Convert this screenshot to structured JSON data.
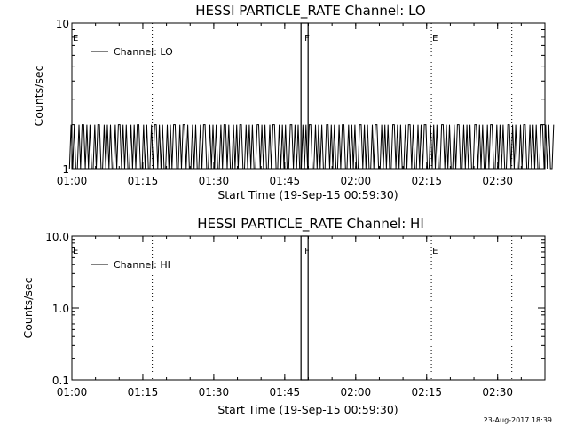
{
  "footer": {
    "timestamp": "23-Aug-2017 18:39"
  },
  "chart_data": [
    {
      "type": "line",
      "title": "HESSI PARTICLE_RATE Channel: LO",
      "xlabel": "Start Time (19-Sep-15 00:59:30)",
      "ylabel": "Counts/sec",
      "y_scale": "log",
      "ylim": [
        1,
        10
      ],
      "y_ticks": [
        1,
        10
      ],
      "y_tick_labels": [
        "1",
        "10"
      ],
      "xlim": [
        "01:00",
        "02:40"
      ],
      "x_ticks": [
        "01:00",
        "01:15",
        "01:30",
        "01:45",
        "02:00",
        "02:15",
        "02:30"
      ],
      "grid": false,
      "legend_position": "top-left",
      "series": [
        {
          "name": "Channel: LO",
          "time_step_seconds": 20,
          "start_time": "00:59:30",
          "values": [
            1,
            2,
            1,
            2,
            1,
            1,
            2,
            1,
            2,
            2,
            1,
            2,
            1,
            2,
            1,
            1,
            2,
            1,
            2,
            2,
            1,
            1,
            2,
            1,
            2,
            1,
            2,
            1,
            1,
            2,
            1,
            2,
            2,
            1,
            2,
            1,
            2,
            1,
            1,
            2,
            1,
            2,
            1,
            2,
            2,
            1,
            1,
            2,
            1,
            2,
            1,
            1,
            2,
            1,
            2,
            2,
            1,
            2,
            1,
            2,
            1,
            1,
            2,
            1,
            2,
            1,
            2,
            2,
            1,
            1,
            2,
            1,
            2,
            2,
            1,
            2,
            1,
            1,
            2,
            1,
            2,
            1,
            1,
            2,
            1,
            2,
            2,
            1,
            1,
            2,
            1,
            2,
            1,
            2,
            1,
            1,
            2,
            1,
            2,
            2,
            1,
            2,
            1,
            1,
            2,
            1,
            2,
            1,
            2,
            2,
            1,
            1,
            2,
            1,
            2,
            1,
            2,
            1,
            1,
            2,
            2,
            1,
            2,
            1,
            2,
            1,
            1,
            2,
            1,
            2,
            2,
            1,
            1,
            2,
            1,
            2,
            1,
            2,
            1,
            1,
            2,
            2,
            1,
            2,
            1,
            2,
            1,
            1,
            2,
            1,
            2,
            1,
            2,
            2,
            1,
            1,
            2,
            1,
            2,
            1,
            2,
            1,
            1,
            2,
            2,
            1,
            2,
            1,
            2,
            1,
            1,
            2,
            1,
            2,
            2,
            1,
            1,
            2,
            1,
            2,
            1,
            2,
            1,
            1,
            2,
            2,
            1,
            2,
            1,
            2,
            1,
            1,
            2,
            1,
            2,
            2,
            1,
            1,
            2,
            1,
            2,
            1,
            2,
            1,
            1,
            2,
            2,
            1,
            2,
            1,
            2,
            1,
            1,
            2,
            1,
            2,
            2,
            1,
            2,
            1,
            1,
            2,
            1,
            2,
            1,
            2,
            2,
            1,
            1,
            2,
            1,
            2,
            1,
            2,
            1,
            1,
            2,
            2,
            1,
            2,
            1,
            2,
            1,
            1,
            2,
            1,
            2,
            2,
            1,
            1,
            2,
            1,
            2,
            1,
            2,
            1,
            1,
            2,
            2,
            1,
            2,
            1,
            2,
            1,
            1,
            2,
            1,
            2,
            2,
            1,
            1,
            2,
            1,
            2,
            1,
            2,
            1,
            1,
            2,
            2,
            1,
            2,
            1,
            2,
            1,
            1,
            2,
            1,
            2,
            2,
            1,
            1,
            2,
            1,
            2,
            1,
            2,
            1,
            1,
            2,
            2,
            1,
            2,
            1,
            2,
            1,
            1,
            2
          ]
        }
      ],
      "markers": [
        {
          "label": "E",
          "time": "01:00",
          "line": "dotted"
        },
        {
          "label": "",
          "time": "01:17",
          "line": "dotted"
        },
        {
          "label": "F",
          "time": "01:49",
          "line": "solid"
        },
        {
          "label": "E",
          "time": "02:16",
          "line": "dotted"
        },
        {
          "label": "",
          "time": "02:33",
          "line": "dotted"
        }
      ]
    },
    {
      "type": "line",
      "title": "HESSI PARTICLE_RATE Channel: HI",
      "xlabel": "Start Time (19-Sep-15 00:59:30)",
      "ylabel": "Counts/sec",
      "y_scale": "log",
      "ylim": [
        0.1,
        10.0
      ],
      "y_ticks": [
        0.1,
        1.0,
        10.0
      ],
      "y_tick_labels": [
        "0.1",
        "1.0",
        "10.0"
      ],
      "xlim": [
        "01:00",
        "02:40"
      ],
      "x_ticks": [
        "01:00",
        "01:15",
        "01:30",
        "01:45",
        "02:00",
        "02:15",
        "02:30"
      ],
      "grid": false,
      "legend_position": "top-left",
      "series": [
        {
          "name": "Channel: HI",
          "values": []
        }
      ],
      "markers": [
        {
          "label": "E",
          "time": "01:00",
          "line": "dotted"
        },
        {
          "label": "",
          "time": "01:17",
          "line": "dotted"
        },
        {
          "label": "F",
          "time": "01:49",
          "line": "solid"
        },
        {
          "label": "E",
          "time": "02:16",
          "line": "dotted"
        },
        {
          "label": "",
          "time": "02:33",
          "line": "dotted"
        }
      ]
    }
  ]
}
